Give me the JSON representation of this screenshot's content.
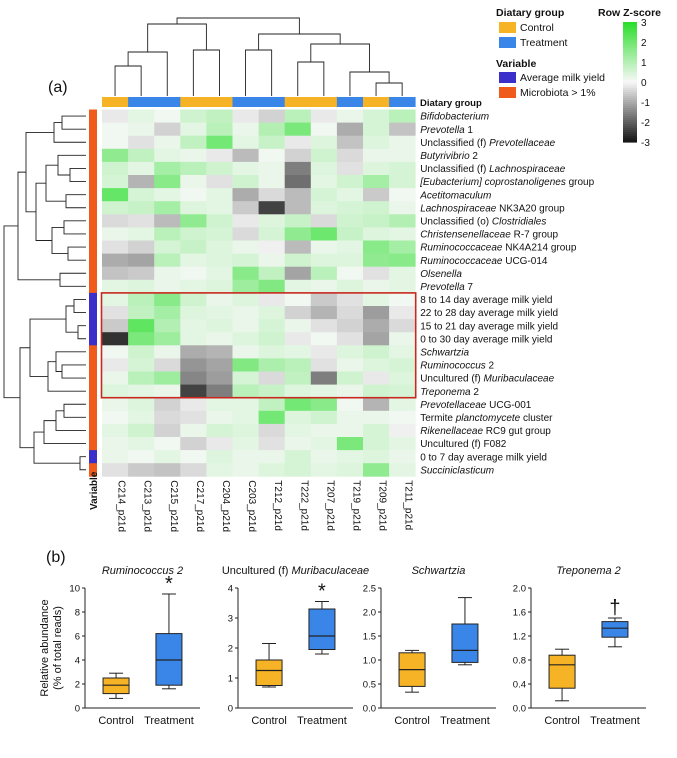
{
  "panel_a_label": "(a)",
  "panel_b_label": "(b)",
  "legends": {
    "diet_title": "Diatary group",
    "diet_items": [
      {
        "label": "Control",
        "color": "#f5b325"
      },
      {
        "label": "Treatment",
        "color": "#3a86e8"
      }
    ],
    "variable_title": "Variable",
    "variable_items": [
      {
        "label": "Average milk yield",
        "color": "#3a2fc9"
      },
      {
        "label": "Microbiota > 1%",
        "color": "#f05a1a"
      }
    ],
    "scale_title": "Row Z-score",
    "scale_ticks": [
      "3",
      "2",
      "1",
      "0",
      "-1",
      "-2",
      "-3"
    ]
  },
  "heatmap_header": "Diatary group",
  "variable_axis_label": "Variable",
  "chart_data": [
    {
      "type": "heatmap",
      "title": "",
      "columns": [
        "C214_p21d",
        "C213_p21d",
        "C215_p21d",
        "C217_p21d",
        "C204_p21d",
        "C203_p21d",
        "T212_p21d",
        "T222_p21d",
        "T207_p21d",
        "T219_p21d",
        "T209_p21d",
        "T211_p21d"
      ],
      "column_groups": [
        "Control",
        "Treatment",
        "Treatment",
        "Control",
        "Control",
        "Treatment",
        "Treatment",
        "Control",
        "Control",
        "Treatment",
        "Control",
        "Treatment"
      ],
      "rows": [
        {
          "label": [
            "",
            "Bifidobacterium",
            ""
          ],
          "italic": [
            false,
            true,
            false
          ],
          "variable": "Microbiota > 1%",
          "z": [
            -0.2,
            0.3,
            0.1,
            0.6,
            0.8,
            -0.2,
            -0.5,
            0.9,
            -0.2,
            0.2,
            0.5,
            0.9
          ]
        },
        {
          "label": [
            "",
            "Prevotella",
            " 1"
          ],
          "italic": [
            false,
            true,
            false
          ],
          "variable": "Microbiota > 1%",
          "z": [
            0.1,
            0.2,
            -0.5,
            0.3,
            0.9,
            0.2,
            1.0,
            1.8,
            0.1,
            -1.0,
            0.5,
            -0.7
          ]
        },
        {
          "label": [
            "Unclassified (f) ",
            "Prevotellaceae",
            ""
          ],
          "italic": [
            false,
            true,
            false
          ],
          "variable": "Microbiota > 1%",
          "z": [
            0.1,
            -0.3,
            0.2,
            0.8,
            1.9,
            0.3,
            0.7,
            -0.2,
            0.4,
            -0.7,
            0.4,
            0.2
          ]
        },
        {
          "label": [
            "",
            "Butyrivibrio",
            " 2"
          ],
          "italic": [
            false,
            true,
            false
          ],
          "variable": "Microbiota > 1%",
          "z": [
            1.5,
            0.8,
            0.3,
            0.2,
            -0.2,
            -0.8,
            0.1,
            -0.5,
            0.6,
            -0.4,
            0.2,
            0.2
          ]
        },
        {
          "label": [
            "Unclassified (f) ",
            "Lachnospiraceae",
            ""
          ],
          "italic": [
            false,
            true,
            false
          ],
          "variable": "Microbiota > 1%",
          "z": [
            0.6,
            0.3,
            1.2,
            0.9,
            0.6,
            0.3,
            0.2,
            -1.6,
            0.4,
            -0.3,
            0.4,
            0.5
          ]
        },
        {
          "label": [
            "",
            "[Eubacterium] coprostanoligenes",
            " group"
          ],
          "italic": [
            false,
            true,
            false
          ],
          "variable": "Microbiota > 1%",
          "z": [
            0.5,
            -0.9,
            1.6,
            0.2,
            -0.3,
            0.6,
            0.2,
            -1.8,
            0.3,
            0.6,
            1.2,
            0.5
          ]
        },
        {
          "label": [
            "",
            "Acetitomaculum",
            ""
          ],
          "italic": [
            false,
            true,
            false
          ],
          "variable": "Microbiota > 1%",
          "z": [
            2.1,
            0.5,
            0.3,
            0.1,
            0.3,
            -1.0,
            -0.4,
            -0.8,
            0.5,
            0.3,
            -0.6,
            0.1
          ]
        },
        {
          "label": [
            "",
            "Lachnospiraceae",
            " NK3A20 group"
          ],
          "italic": [
            false,
            true,
            false
          ],
          "variable": "Microbiota > 1%",
          "z": [
            0.6,
            0.7,
            1.2,
            0.4,
            0.3,
            -0.6,
            -2.4,
            -0.8,
            0.4,
            0.5,
            0.6,
            0.2
          ]
        },
        {
          "label": [
            "Unclassified (o) ",
            "Clostridiales",
            ""
          ],
          "italic": [
            false,
            true,
            false
          ],
          "variable": "Microbiota > 1%",
          "z": [
            -0.4,
            -0.3,
            -0.8,
            1.5,
            0.6,
            -0.2,
            0.4,
            0.7,
            -0.4,
            0.6,
            0.7,
            1.0
          ]
        },
        {
          "label": [
            "",
            "Christensenellaceae",
            " R-7 group"
          ],
          "italic": [
            false,
            true,
            false
          ],
          "variable": "Microbiota > 1%",
          "z": [
            0.2,
            0.3,
            0.9,
            0.6,
            0.5,
            -0.4,
            0.5,
            1.5,
            2.0,
            0.7,
            0.4,
            0.3
          ]
        },
        {
          "label": [
            "",
            "Ruminococcaceae",
            " NK4A214 group"
          ],
          "italic": [
            false,
            true,
            false
          ],
          "variable": "Microbiota > 1%",
          "z": [
            -0.3,
            -0.5,
            0.5,
            0.7,
            0.4,
            0.2,
            -0.1,
            -0.8,
            0.2,
            0.3,
            1.6,
            1.2
          ]
        },
        {
          "label": [
            "",
            "Ruminococcaceae",
            " UCG-014"
          ],
          "italic": [
            false,
            true,
            false
          ],
          "variable": "Microbiota > 1%",
          "z": [
            -1.0,
            -1.1,
            0.9,
            0.3,
            0.4,
            0.5,
            0.2,
            0.6,
            0.4,
            0.4,
            1.5,
            1.6
          ]
        },
        {
          "label": [
            "",
            "Olsenella",
            ""
          ],
          "italic": [
            false,
            true,
            false
          ],
          "variable": "Microbiota > 1%",
          "z": [
            -0.7,
            -0.6,
            0.2,
            0.1,
            0.3,
            1.6,
            0.8,
            -1.1,
            0.9,
            0.1,
            -0.3,
            0.3
          ]
        },
        {
          "label": [
            "",
            "Prevotella",
            " 7"
          ],
          "italic": [
            false,
            true,
            false
          ],
          "variable": "Microbiota > 1%",
          "z": [
            0.3,
            0.4,
            0.2,
            0.3,
            0.4,
            1.3,
            1.7,
            0.3,
            0.2,
            0.4,
            0.2,
            0.3
          ]
        },
        {
          "label": [
            "8 to 14 day average milk yield",
            "",
            ""
          ],
          "italic": [
            false,
            false,
            false
          ],
          "variable": "Average milk yield",
          "z": [
            0.3,
            0.9,
            1.6,
            0.6,
            0.2,
            0.4,
            -0.2,
            0.1,
            -0.6,
            -0.3,
            0.3,
            0.1
          ]
        },
        {
          "label": [
            "22 to 28 day average milk yield",
            "",
            ""
          ],
          "italic": [
            false,
            false,
            false
          ],
          "variable": "Average milk yield",
          "z": [
            -0.3,
            0.8,
            1.2,
            0.4,
            0.3,
            0.2,
            0.4,
            -0.5,
            -0.9,
            -0.4,
            -1.2,
            -0.2
          ]
        },
        {
          "label": [
            "15 to 21 day average milk yield",
            "",
            ""
          ],
          "italic": [
            false,
            false,
            false
          ],
          "variable": "Average milk yield",
          "z": [
            -0.6,
            2.2,
            1.0,
            0.3,
            0.4,
            0.2,
            0.5,
            0.2,
            -0.3,
            -0.5,
            -1.0,
            -0.4
          ]
        },
        {
          "label": [
            "0 to 30 day average milk yield",
            "",
            ""
          ],
          "italic": [
            false,
            false,
            false
          ],
          "variable": "Average milk yield",
          "z": [
            -2.6,
            1.8,
            1.3,
            0.3,
            0.2,
            0.4,
            0.6,
            -0.2,
            0.1,
            -0.3,
            -1.1,
            0.2
          ]
        },
        {
          "label": [
            "",
            "Schwartzia",
            ""
          ],
          "italic": [
            false,
            true,
            false
          ],
          "variable": "Microbiota > 1%",
          "z": [
            0.1,
            0.6,
            0.2,
            -1.0,
            -0.9,
            0.2,
            0.4,
            0.3,
            -0.2,
            0.4,
            0.6,
            0.3
          ]
        },
        {
          "label": [
            "",
            "Ruminococcus",
            " 2"
          ],
          "italic": [
            false,
            true,
            false
          ],
          "variable": "Microbiota > 1%",
          "z": [
            -0.2,
            0.5,
            -0.4,
            -1.3,
            -1.1,
            1.7,
            1.1,
            0.9,
            -0.3,
            0.2,
            0.4,
            0.5
          ]
        },
        {
          "label": [
            "Uncultured (f) ",
            "Muribaculaceae",
            ""
          ],
          "italic": [
            false,
            true,
            false
          ],
          "variable": "Microbiota > 1%",
          "z": [
            0.2,
            0.9,
            1.3,
            -1.5,
            -1.2,
            0.5,
            -0.4,
            0.8,
            -1.6,
            0.6,
            -0.2,
            0.4
          ]
        },
        {
          "label": [
            "",
            "Treponema",
            " 2"
          ],
          "italic": [
            false,
            true,
            false
          ],
          "variable": "Microbiota > 1%",
          "z": [
            0.4,
            0.3,
            0.2,
            -2.4,
            -1.6,
            0.9,
            0.7,
            0.4,
            0.3,
            0.2,
            0.6,
            0.5
          ]
        },
        {
          "label": [
            "",
            "Prevotellaceae",
            " UCG-001"
          ],
          "italic": [
            false,
            true,
            false
          ],
          "variable": "Microbiota > 1%",
          "z": [
            0.2,
            0.4,
            -0.5,
            -0.2,
            0.3,
            0.3,
            0.8,
            1.9,
            1.6,
            0.1,
            -0.9,
            0.3
          ]
        },
        {
          "label": [
            "Termite ",
            "planctomycete",
            " cluster"
          ],
          "italic": [
            false,
            true,
            false
          ],
          "variable": "Microbiota > 1%",
          "z": [
            0.1,
            0.3,
            -0.4,
            -0.3,
            0.2,
            0.3,
            1.9,
            0.4,
            0.6,
            0.2,
            0.2,
            0.1
          ]
        },
        {
          "label": [
            "",
            "Rikenellaceae",
            " RC9 gut group"
          ],
          "italic": [
            false,
            true,
            false
          ],
          "variable": "Microbiota > 1%",
          "z": [
            0.3,
            0.6,
            -0.5,
            0.2,
            0.5,
            0.4,
            -0.4,
            0.3,
            0.2,
            0.2,
            0.5,
            -0.1
          ]
        },
        {
          "label": [
            "Uncultured (f) F082",
            "",
            ""
          ],
          "italic": [
            false,
            false,
            false
          ],
          "variable": "Microbiota > 1%",
          "z": [
            0.2,
            0.3,
            0.1,
            -0.5,
            -0.2,
            0.3,
            -0.3,
            0.2,
            0.3,
            1.8,
            0.5,
            0.3
          ]
        },
        {
          "label": [
            "0 to 7 day average milk yield",
            "",
            ""
          ],
          "italic": [
            false,
            false,
            false
          ],
          "variable": "Average milk yield",
          "z": [
            0.2,
            0.1,
            0.3,
            0.1,
            0.4,
            0.2,
            0.2,
            0.5,
            0.2,
            0.3,
            0.4,
            0.2
          ]
        },
        {
          "label": [
            "",
            "Succiniclasticum",
            ""
          ],
          "italic": [
            false,
            true,
            false
          ],
          "variable": "Microbiota > 1%",
          "z": [
            -0.3,
            -0.6,
            -0.7,
            -0.4,
            0.3,
            0.2,
            0.4,
            0.5,
            0.3,
            0.4,
            1.5,
            0.3
          ]
        }
      ],
      "highlight_rows": [
        14,
        21
      ],
      "z_range": [
        -3,
        3
      ]
    },
    {
      "type": "boxplot",
      "title": "Ruminococcus 2",
      "categories": [
        "Control",
        "Treatment"
      ],
      "ylabel": [
        "Relative abundance",
        "(% of total reads)"
      ],
      "ylim": [
        0,
        10
      ],
      "yticks": [
        "0",
        "2",
        "4",
        "6",
        "8",
        "10"
      ],
      "boxes": [
        {
          "min": 0.8,
          "q1": 1.2,
          "median": 1.9,
          "q3": 2.5,
          "max": 2.9,
          "color": "#f5b325"
        },
        {
          "min": 1.6,
          "q1": 1.9,
          "median": 4.0,
          "q3": 6.2,
          "max": 9.5,
          "color": "#3a86e8"
        }
      ],
      "annotation": "*"
    },
    {
      "type": "boxplot",
      "title": "Uncultured (f) Muribaculaceae",
      "categories": [
        "Control",
        "Treatment"
      ],
      "ylim": [
        0,
        4
      ],
      "yticks": [
        "0",
        "1",
        "2",
        "3",
        "4"
      ],
      "boxes": [
        {
          "min": 0.7,
          "q1": 0.75,
          "median": 1.25,
          "q3": 1.6,
          "max": 2.15,
          "color": "#f5b325"
        },
        {
          "min": 1.8,
          "q1": 1.95,
          "median": 2.4,
          "q3": 3.3,
          "max": 3.55,
          "color": "#3a86e8"
        }
      ],
      "annotation": "*"
    },
    {
      "type": "boxplot",
      "title": "Schwartzia",
      "categories": [
        "Control",
        "Treatment"
      ],
      "ylim": [
        0,
        2.5
      ],
      "yticks": [
        "0.0",
        "0.5",
        "1.0",
        "1.5",
        "2.0",
        "2.5"
      ],
      "boxes": [
        {
          "min": 0.33,
          "q1": 0.45,
          "median": 0.8,
          "q3": 1.15,
          "max": 1.2,
          "color": "#f5b325"
        },
        {
          "min": 0.9,
          "q1": 0.95,
          "median": 1.2,
          "q3": 1.75,
          "max": 2.3,
          "color": "#3a86e8"
        }
      ],
      "annotation": ""
    },
    {
      "type": "boxplot",
      "title": "Treponema 2",
      "categories": [
        "Control",
        "Treatment"
      ],
      "ylim": [
        0,
        2
      ],
      "yticks": [
        "0.0",
        "0.4",
        "0.8",
        "1.2",
        "1.6",
        "2.0"
      ],
      "boxes": [
        {
          "min": 0.12,
          "q1": 0.33,
          "median": 0.72,
          "q3": 0.88,
          "max": 0.98,
          "color": "#f5b325"
        },
        {
          "min": 1.02,
          "q1": 1.18,
          "median": 1.33,
          "q3": 1.44,
          "max": 1.5,
          "color": "#3a86e8"
        }
      ],
      "annotation": "†"
    }
  ]
}
